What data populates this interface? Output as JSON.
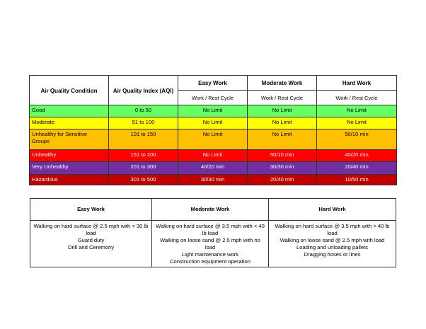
{
  "aqi_table": {
    "headers": {
      "condition": "Air Quality Condition",
      "aqi": "Air Quality Index (AQI)",
      "easy": "Easy Work",
      "moderate": "Moderate Work",
      "hard": "Hard Work",
      "cycle": "Work / Rest Cycle"
    },
    "rows": [
      {
        "condition": "Good",
        "aqi": "0 to 50",
        "easy": "No Limit",
        "moderate": "No Limit",
        "hard": "No Limit",
        "color": "#66ff66",
        "text_color": "#000000"
      },
      {
        "condition": "Moderate",
        "aqi": "51 to 100",
        "easy": "No Limit",
        "moderate": "No Limit",
        "hard": "No Limit",
        "color": "#ffff00",
        "text_color": "#000000"
      },
      {
        "condition": "Unhealthy for Sensitive Groups",
        "aqi": "101 to 150",
        "easy": "No Limit",
        "moderate": "No Limit",
        "hard": "50/10 min",
        "color": "#ffc000",
        "text_color": "#000000"
      },
      {
        "condition": "Unhealthy",
        "aqi": "151 to 200",
        "easy": "No Limit",
        "moderate": "50/10 min",
        "hard": "40/20 min",
        "color": "#ff0000",
        "text_color": "#ffffff"
      },
      {
        "condition": "Very Unhealthy",
        "aqi": "201 to 300",
        "easy": "40/20 min",
        "moderate": "30/30 min",
        "hard": "20/40 min",
        "color": "#7030a0",
        "text_color": "#ffffff"
      },
      {
        "condition": "Hazardous",
        "aqi": "301 to 500",
        "easy": "30/30 min",
        "moderate": "20/40 min",
        "hard": "10/50 min",
        "color": "#c00000",
        "text_color": "#ffffff"
      }
    ]
  },
  "work_table": {
    "columns": [
      {
        "header": "Easy Work",
        "items": [
          "Walking on hard surface @ 2.5 mph with < 30 lb load",
          "Guard duty",
          "Drill and Ceremony"
        ]
      },
      {
        "header": "Moderate Work",
        "items": [
          "Walking on hard surface @ 3.5 mph with < 40 lb load",
          "Walking on loose sand @ 2.5 mph with no load",
          "Light maintenance work",
          "Construction equipment operation"
        ]
      },
      {
        "header": "Hard Work",
        "items": [
          "Walking on hard surface @ 3.5 mph with > 40 lb load",
          "Walking on loose sand @ 2.5 mph with load",
          "Loading and unloading pallets",
          "Dragging hoses or lines"
        ]
      }
    ]
  }
}
